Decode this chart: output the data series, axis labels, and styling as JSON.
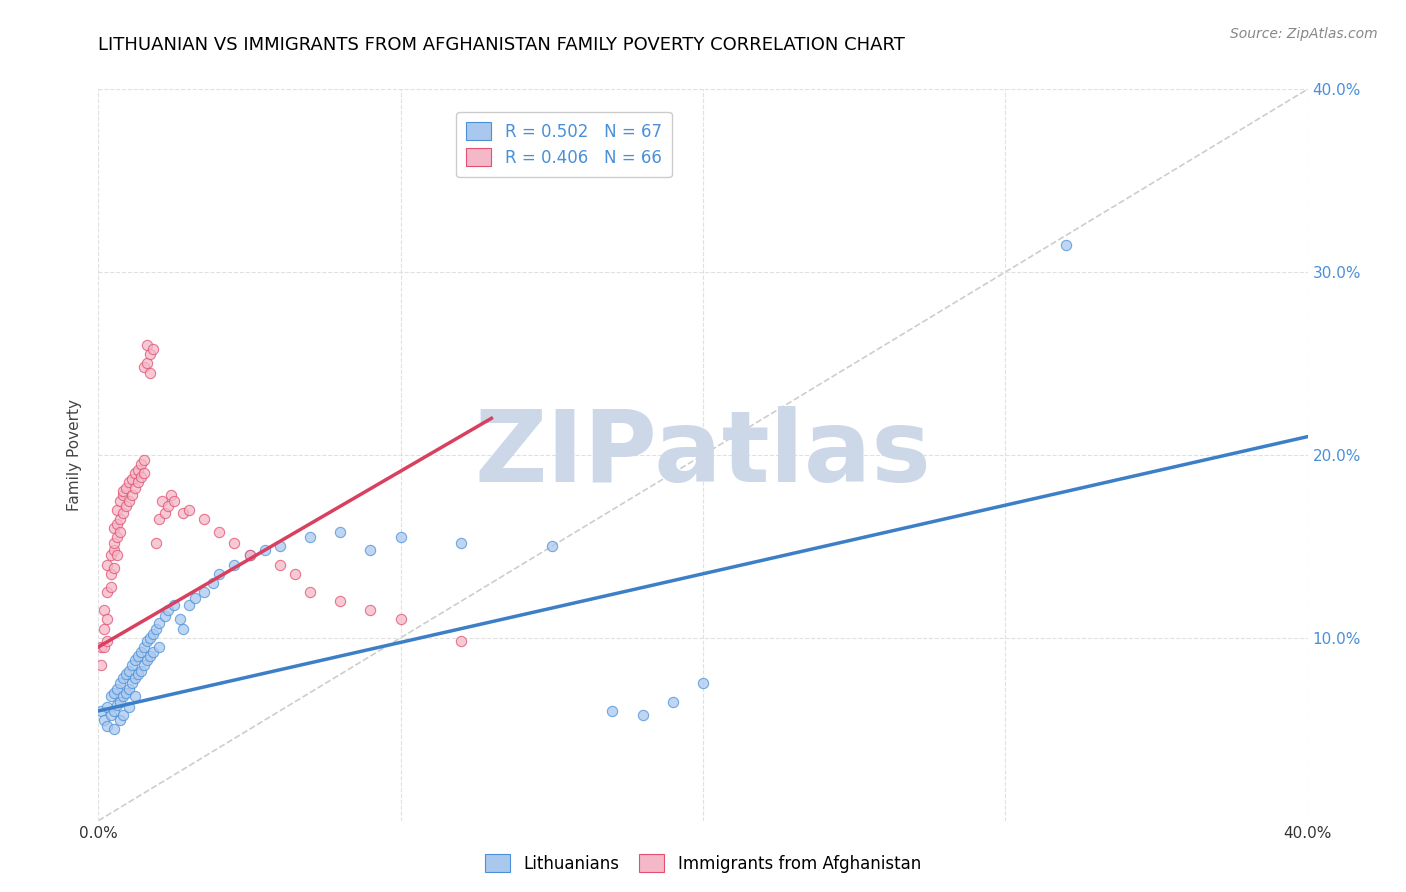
{
  "title": "LITHUANIAN VS IMMIGRANTS FROM AFGHANISTAN FAMILY POVERTY CORRELATION CHART",
  "source": "Source: ZipAtlas.com",
  "ylabel": "Family Poverty",
  "xlim": [
    0,
    0.4
  ],
  "ylim": [
    0,
    0.4
  ],
  "x_tick_positions": [
    0.0,
    0.1,
    0.2,
    0.3,
    0.4
  ],
  "x_tick_labels": [
    "0.0%",
    "",
    "",
    "",
    "40.0%"
  ],
  "y_tick_positions": [
    0.0,
    0.1,
    0.2,
    0.3,
    0.4
  ],
  "y_tick_labels_right": [
    "",
    "10.0%",
    "20.0%",
    "30.0%",
    "40.0%"
  ],
  "legend_labels": [
    "Lithuanians",
    "Immigrants from Afghanistan"
  ],
  "blue_fill_color": "#aac8ee",
  "blue_edge_color": "#4a90d9",
  "pink_fill_color": "#f5b8c8",
  "pink_edge_color": "#e05070",
  "blue_line_color": "#3d7fc7",
  "pink_line_color": "#d94060",
  "diag_line_color": "#c8c8c8",
  "R_blue": 0.502,
  "N_blue": 67,
  "R_pink": 0.406,
  "N_pink": 66,
  "watermark": "ZIPatlas",
  "blue_scatter": [
    [
      0.001,
      0.06
    ],
    [
      0.002,
      0.055
    ],
    [
      0.003,
      0.062
    ],
    [
      0.003,
      0.052
    ],
    [
      0.004,
      0.068
    ],
    [
      0.004,
      0.058
    ],
    [
      0.005,
      0.07
    ],
    [
      0.005,
      0.06
    ],
    [
      0.005,
      0.05
    ],
    [
      0.006,
      0.072
    ],
    [
      0.006,
      0.063
    ],
    [
      0.007,
      0.075
    ],
    [
      0.007,
      0.065
    ],
    [
      0.007,
      0.055
    ],
    [
      0.008,
      0.078
    ],
    [
      0.008,
      0.068
    ],
    [
      0.008,
      0.058
    ],
    [
      0.009,
      0.08
    ],
    [
      0.009,
      0.07
    ],
    [
      0.01,
      0.082
    ],
    [
      0.01,
      0.072
    ],
    [
      0.01,
      0.062
    ],
    [
      0.011,
      0.085
    ],
    [
      0.011,
      0.075
    ],
    [
      0.012,
      0.088
    ],
    [
      0.012,
      0.078
    ],
    [
      0.012,
      0.068
    ],
    [
      0.013,
      0.09
    ],
    [
      0.013,
      0.08
    ],
    [
      0.014,
      0.092
    ],
    [
      0.014,
      0.082
    ],
    [
      0.015,
      0.095
    ],
    [
      0.015,
      0.085
    ],
    [
      0.016,
      0.098
    ],
    [
      0.016,
      0.088
    ],
    [
      0.017,
      0.1
    ],
    [
      0.017,
      0.09
    ],
    [
      0.018,
      0.102
    ],
    [
      0.018,
      0.092
    ],
    [
      0.019,
      0.105
    ],
    [
      0.02,
      0.108
    ],
    [
      0.02,
      0.095
    ],
    [
      0.022,
      0.112
    ],
    [
      0.023,
      0.115
    ],
    [
      0.025,
      0.118
    ],
    [
      0.027,
      0.11
    ],
    [
      0.028,
      0.105
    ],
    [
      0.03,
      0.118
    ],
    [
      0.032,
      0.122
    ],
    [
      0.035,
      0.125
    ],
    [
      0.038,
      0.13
    ],
    [
      0.04,
      0.135
    ],
    [
      0.045,
      0.14
    ],
    [
      0.05,
      0.145
    ],
    [
      0.055,
      0.148
    ],
    [
      0.06,
      0.15
    ],
    [
      0.07,
      0.155
    ],
    [
      0.08,
      0.158
    ],
    [
      0.09,
      0.148
    ],
    [
      0.1,
      0.155
    ],
    [
      0.12,
      0.152
    ],
    [
      0.15,
      0.15
    ],
    [
      0.17,
      0.06
    ],
    [
      0.18,
      0.058
    ],
    [
      0.19,
      0.065
    ],
    [
      0.2,
      0.075
    ],
    [
      0.32,
      0.315
    ]
  ],
  "pink_scatter": [
    [
      0.001,
      0.095
    ],
    [
      0.001,
      0.085
    ],
    [
      0.002,
      0.105
    ],
    [
      0.002,
      0.095
    ],
    [
      0.002,
      0.115
    ],
    [
      0.003,
      0.125
    ],
    [
      0.003,
      0.11
    ],
    [
      0.003,
      0.098
    ],
    [
      0.003,
      0.14
    ],
    [
      0.004,
      0.135
    ],
    [
      0.004,
      0.145
    ],
    [
      0.004,
      0.128
    ],
    [
      0.005,
      0.148
    ],
    [
      0.005,
      0.138
    ],
    [
      0.005,
      0.16
    ],
    [
      0.005,
      0.152
    ],
    [
      0.006,
      0.162
    ],
    [
      0.006,
      0.155
    ],
    [
      0.006,
      0.145
    ],
    [
      0.006,
      0.17
    ],
    [
      0.007,
      0.175
    ],
    [
      0.007,
      0.165
    ],
    [
      0.007,
      0.158
    ],
    [
      0.008,
      0.178
    ],
    [
      0.008,
      0.168
    ],
    [
      0.008,
      0.18
    ],
    [
      0.009,
      0.182
    ],
    [
      0.009,
      0.172
    ],
    [
      0.01,
      0.185
    ],
    [
      0.01,
      0.175
    ],
    [
      0.011,
      0.187
    ],
    [
      0.011,
      0.178
    ],
    [
      0.012,
      0.19
    ],
    [
      0.012,
      0.182
    ],
    [
      0.013,
      0.192
    ],
    [
      0.013,
      0.185
    ],
    [
      0.014,
      0.195
    ],
    [
      0.014,
      0.188
    ],
    [
      0.015,
      0.197
    ],
    [
      0.015,
      0.19
    ],
    [
      0.015,
      0.248
    ],
    [
      0.016,
      0.26
    ],
    [
      0.016,
      0.25
    ],
    [
      0.017,
      0.245
    ],
    [
      0.017,
      0.255
    ],
    [
      0.018,
      0.258
    ],
    [
      0.019,
      0.152
    ],
    [
      0.02,
      0.165
    ],
    [
      0.021,
      0.175
    ],
    [
      0.022,
      0.168
    ],
    [
      0.023,
      0.172
    ],
    [
      0.024,
      0.178
    ],
    [
      0.025,
      0.175
    ],
    [
      0.028,
      0.168
    ],
    [
      0.03,
      0.17
    ],
    [
      0.035,
      0.165
    ],
    [
      0.04,
      0.158
    ],
    [
      0.045,
      0.152
    ],
    [
      0.05,
      0.145
    ],
    [
      0.06,
      0.14
    ],
    [
      0.065,
      0.135
    ],
    [
      0.07,
      0.125
    ],
    [
      0.08,
      0.12
    ],
    [
      0.09,
      0.115
    ],
    [
      0.1,
      0.11
    ],
    [
      0.12,
      0.098
    ]
  ],
  "blue_trend_x": [
    0.0,
    0.4
  ],
  "blue_trend_y": [
    0.06,
    0.21
  ],
  "pink_trend_x": [
    0.0,
    0.13
  ],
  "pink_trend_y": [
    0.095,
    0.22
  ],
  "background_color": "#ffffff",
  "grid_color": "#e0e0e0",
  "title_fontsize": 13,
  "axis_label_fontsize": 11,
  "tick_fontsize": 11,
  "legend_fontsize": 12,
  "watermark_color": "#ccd8e8",
  "watermark_fontsize": 72,
  "scatter_size": 55,
  "scatter_alpha": 0.75,
  "scatter_lw": 0.8
}
